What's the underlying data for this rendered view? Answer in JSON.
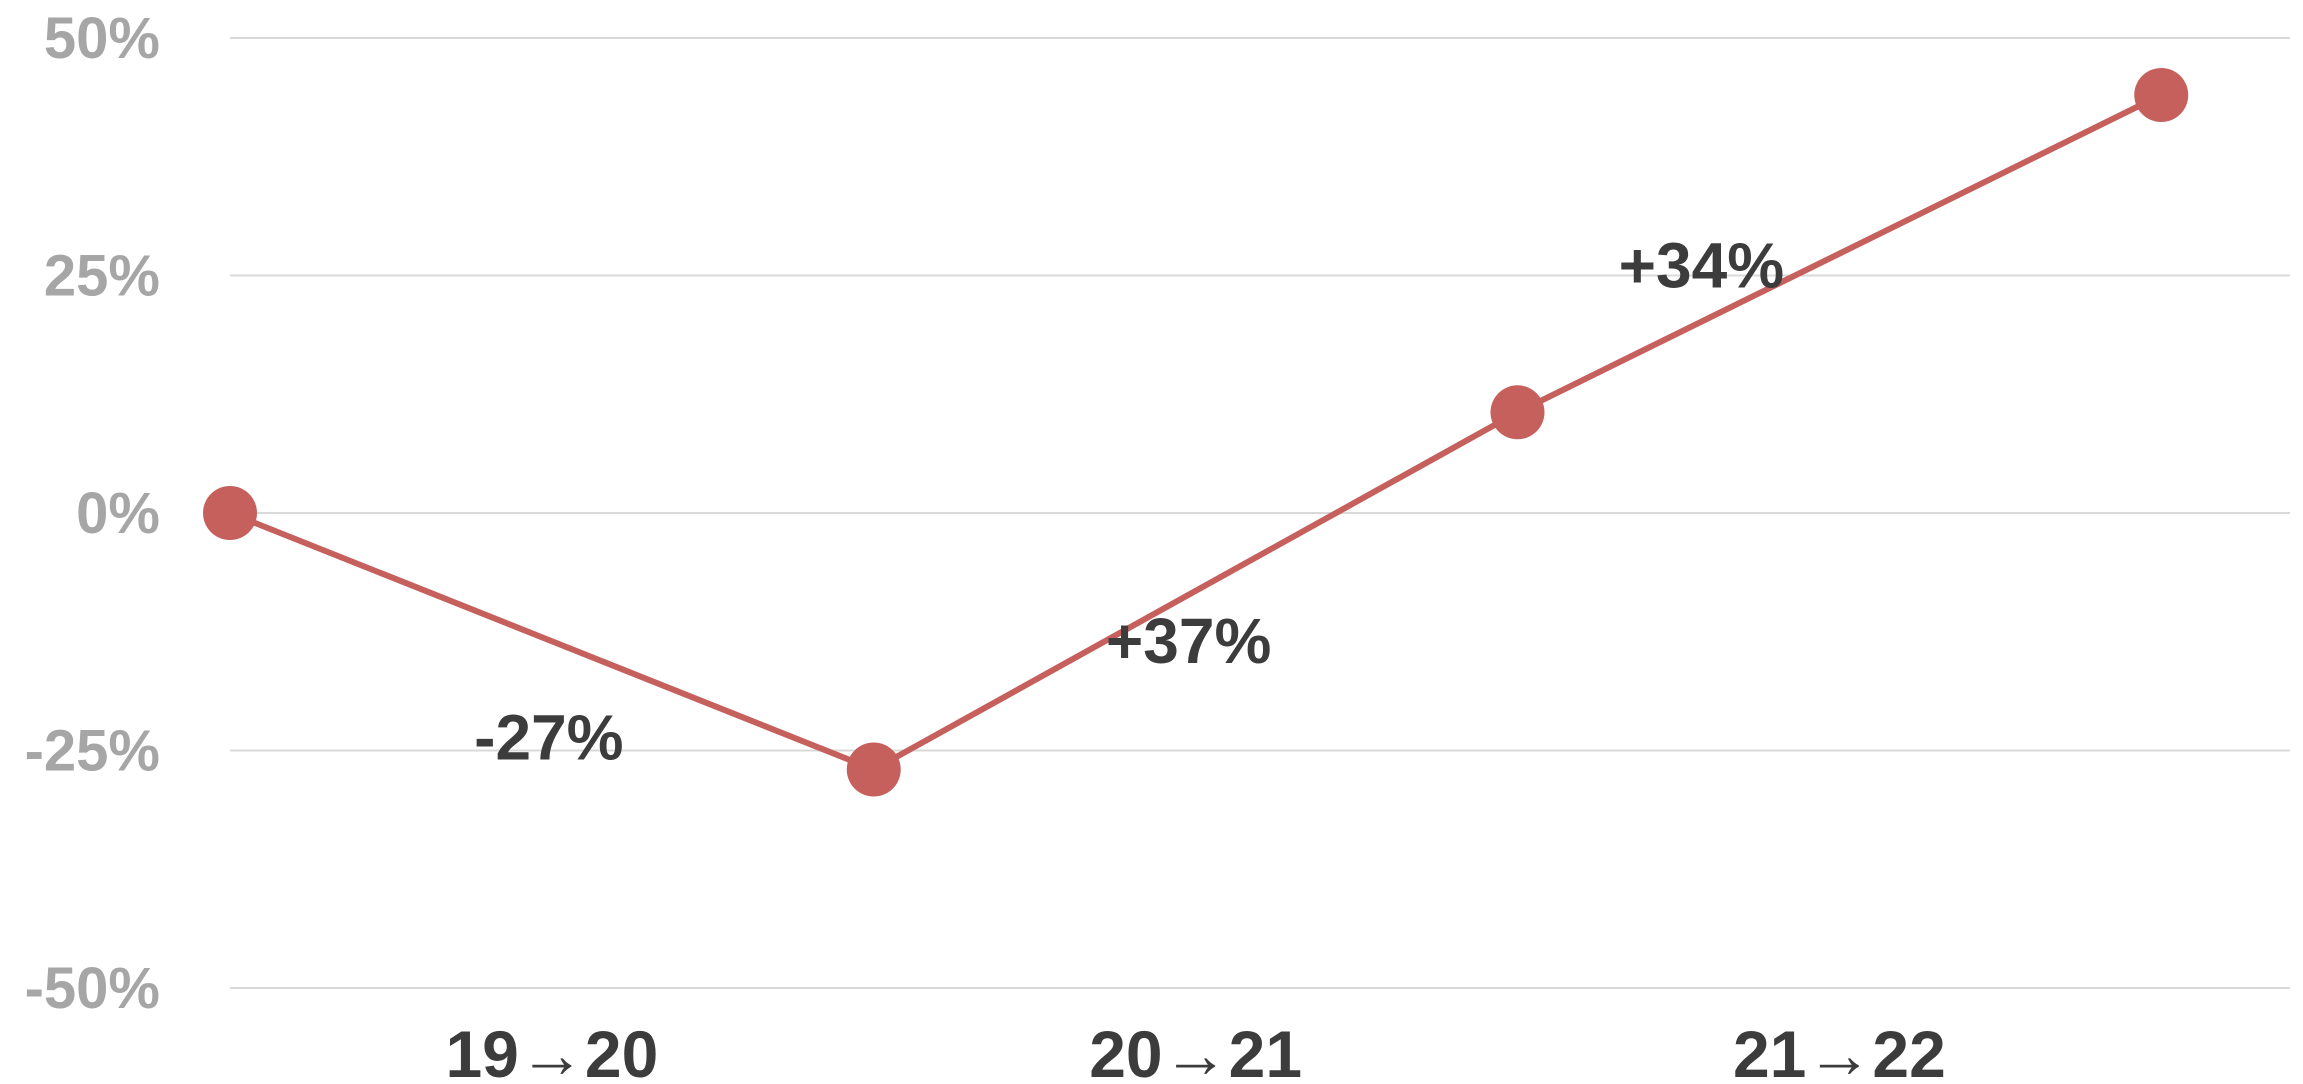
{
  "chart_data": {
    "type": "line",
    "title": "",
    "xlabel": "",
    "ylabel": "",
    "y_unit": "%",
    "ylim": [
      -50,
      50
    ],
    "y_ticks": [
      "50%",
      "25%",
      "0%",
      "-25%",
      "-50%"
    ],
    "y_tick_values": [
      50,
      25,
      0,
      -25,
      -50
    ],
    "categories": [
      "19→20",
      "20→21",
      "21→22"
    ],
    "points": [
      0,
      -27,
      10.6,
      44
    ],
    "data_labels": [
      "-27%",
      "+37%",
      "+34%"
    ],
    "grid": "horizontal",
    "legend": "none",
    "colors": {
      "series": "#C5605D",
      "grid": "#D9D9D9",
      "y_tick_text": "#A6A6A6",
      "label_text": "#3C3C3C"
    }
  }
}
